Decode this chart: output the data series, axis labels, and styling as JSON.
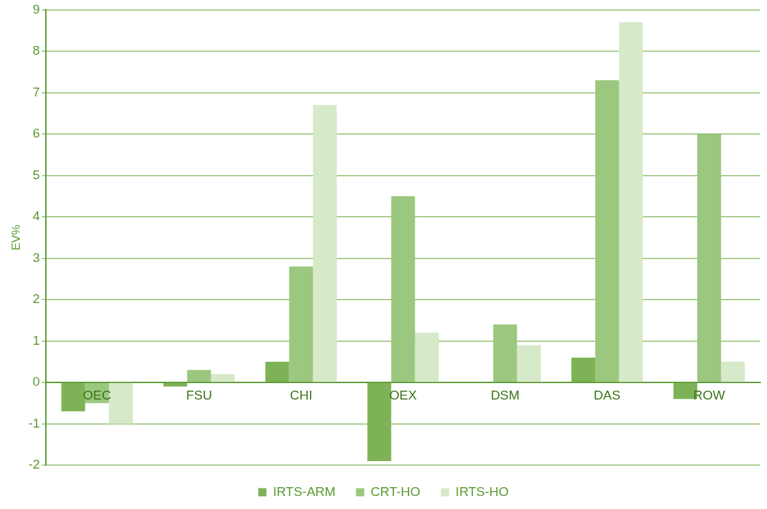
{
  "chart_data": {
    "type": "bar",
    "ylabel": "EV%",
    "categories": [
      "OEC",
      "FSU",
      "CHI",
      "OEX",
      "DSM",
      "DAS",
      "ROW"
    ],
    "series": [
      {
        "name": "IRTS-ARM",
        "color": "#7db356",
        "values": [
          -0.7,
          -0.1,
          0.5,
          -1.9,
          0,
          0.6,
          -0.4
        ]
      },
      {
        "name": "CRT-HO",
        "color": "#9cc77e",
        "values": [
          -0.5,
          0.3,
          2.8,
          4.5,
          1.4,
          7.3,
          6.0
        ]
      },
      {
        "name": "IRTS-HO",
        "color": "#d6e9c8",
        "values": [
          -1.0,
          0.2,
          6.7,
          1.2,
          0.9,
          8.7,
          0.5
        ]
      }
    ],
    "ylim": [
      -2,
      9
    ],
    "yticks": [
      -2,
      -1,
      0,
      1,
      2,
      3,
      4,
      5,
      6,
      7,
      8,
      9
    ],
    "grid": "y",
    "legend": "bottom"
  }
}
